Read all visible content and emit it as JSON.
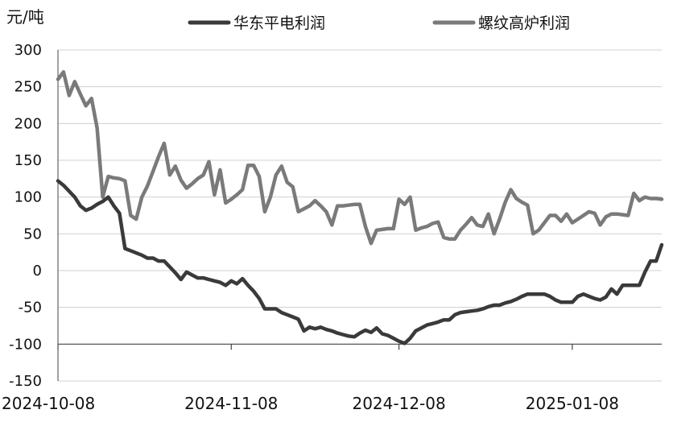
{
  "chart_data": {
    "type": "line",
    "title": "",
    "xlabel": "",
    "ylabel": "元/吨",
    "ylim": [
      -150,
      300
    ],
    "yticks": [
      -150,
      -100,
      -50,
      0,
      50,
      100,
      150,
      200,
      250,
      300
    ],
    "x_tick_labels": [
      "2024-10-08",
      "2024-11-08",
      "2024-12-08",
      "2025-01-08"
    ],
    "x_tick_dates": [
      "2024-10-08",
      "2024-11-08",
      "2024-12-08",
      "2025-01-08"
    ],
    "x_range": [
      "2024-10-08",
      "2025-01-24"
    ],
    "grid": "horizontal",
    "legend_position": "top",
    "series": [
      {
        "name": "华东平电利润",
        "color": "#3a3a3a",
        "points": [
          [
            "2024-10-08",
            122
          ],
          [
            "2024-10-09",
            116
          ],
          [
            "2024-10-10",
            108
          ],
          [
            "2024-10-11",
            100
          ],
          [
            "2024-10-12",
            88
          ],
          [
            "2024-10-13",
            82
          ],
          [
            "2024-10-14",
            85
          ],
          [
            "2024-10-15",
            90
          ],
          [
            "2024-10-16",
            94
          ],
          [
            "2024-10-17",
            100
          ],
          [
            "2024-10-18",
            88
          ],
          [
            "2024-10-19",
            78
          ],
          [
            "2024-10-20",
            30
          ],
          [
            "2024-10-21",
            27
          ],
          [
            "2024-10-22",
            24
          ],
          [
            "2024-10-23",
            21
          ],
          [
            "2024-10-24",
            17
          ],
          [
            "2024-10-25",
            17
          ],
          [
            "2024-10-26",
            13
          ],
          [
            "2024-10-27",
            13
          ],
          [
            "2024-10-28",
            5
          ],
          [
            "2024-10-29",
            -3
          ],
          [
            "2024-10-30",
            -12
          ],
          [
            "2024-10-31",
            -2
          ],
          [
            "2024-11-01",
            -6
          ],
          [
            "2024-11-02",
            -10
          ],
          [
            "2024-11-03",
            -10
          ],
          [
            "2024-11-04",
            -12
          ],
          [
            "2024-11-05",
            -14
          ],
          [
            "2024-11-06",
            -16
          ],
          [
            "2024-11-07",
            -20
          ],
          [
            "2024-11-08",
            -14
          ],
          [
            "2024-11-09",
            -18
          ],
          [
            "2024-11-10",
            -11
          ],
          [
            "2024-11-11",
            -20
          ],
          [
            "2024-11-12",
            -28
          ],
          [
            "2024-11-13",
            -38
          ],
          [
            "2024-11-14",
            -52
          ],
          [
            "2024-11-15",
            -52
          ],
          [
            "2024-11-16",
            -52
          ],
          [
            "2024-11-17",
            -57
          ],
          [
            "2024-11-18",
            -60
          ],
          [
            "2024-11-19",
            -63
          ],
          [
            "2024-11-20",
            -66
          ],
          [
            "2024-11-21",
            -82
          ],
          [
            "2024-11-22",
            -77
          ],
          [
            "2024-11-23",
            -79
          ],
          [
            "2024-11-24",
            -77
          ],
          [
            "2024-11-25",
            -80
          ],
          [
            "2024-11-26",
            -82
          ],
          [
            "2024-11-27",
            -85
          ],
          [
            "2024-11-28",
            -87
          ],
          [
            "2024-11-29",
            -89
          ],
          [
            "2024-11-30",
            -90
          ],
          [
            "2024-12-01",
            -85
          ],
          [
            "2024-12-02",
            -81
          ],
          [
            "2024-12-03",
            -84
          ],
          [
            "2024-12-04",
            -78
          ],
          [
            "2024-12-05",
            -86
          ],
          [
            "2024-12-06",
            -88
          ],
          [
            "2024-12-07",
            -92
          ],
          [
            "2024-12-08",
            -96
          ],
          [
            "2024-12-09",
            -99
          ],
          [
            "2024-12-10",
            -92
          ],
          [
            "2024-12-11",
            -82
          ],
          [
            "2024-12-12",
            -78
          ],
          [
            "2024-12-13",
            -74
          ],
          [
            "2024-12-14",
            -72
          ],
          [
            "2024-12-15",
            -70
          ],
          [
            "2024-12-16",
            -67
          ],
          [
            "2024-12-17",
            -67
          ],
          [
            "2024-12-18",
            -60
          ],
          [
            "2024-12-19",
            -57
          ],
          [
            "2024-12-20",
            -56
          ],
          [
            "2024-12-21",
            -55
          ],
          [
            "2024-12-22",
            -54
          ],
          [
            "2024-12-23",
            -52
          ],
          [
            "2024-12-24",
            -49
          ],
          [
            "2024-12-25",
            -47
          ],
          [
            "2024-12-26",
            -47
          ],
          [
            "2024-12-27",
            -44
          ],
          [
            "2024-12-28",
            -42
          ],
          [
            "2024-12-29",
            -39
          ],
          [
            "2024-12-30",
            -35
          ],
          [
            "2024-12-31",
            -32
          ],
          [
            "2025-01-01",
            -32
          ],
          [
            "2025-01-02",
            -32
          ],
          [
            "2025-01-03",
            -32
          ],
          [
            "2025-01-04",
            -35
          ],
          [
            "2025-01-05",
            -40
          ],
          [
            "2025-01-06",
            -43
          ],
          [
            "2025-01-07",
            -43
          ],
          [
            "2025-01-08",
            -43
          ],
          [
            "2025-01-09",
            -35
          ],
          [
            "2025-01-10",
            -32
          ],
          [
            "2025-01-11",
            -35
          ],
          [
            "2025-01-12",
            -38
          ],
          [
            "2025-01-13",
            -40
          ],
          [
            "2025-01-14",
            -36
          ],
          [
            "2025-01-15",
            -25
          ],
          [
            "2025-01-16",
            -32
          ],
          [
            "2025-01-17",
            -20
          ],
          [
            "2025-01-18",
            -20
          ],
          [
            "2025-01-19",
            -20
          ],
          [
            "2025-01-20",
            -20
          ],
          [
            "2025-01-21",
            -2
          ],
          [
            "2025-01-22",
            13
          ],
          [
            "2025-01-23",
            13
          ],
          [
            "2025-01-24",
            35
          ]
        ]
      },
      {
        "name": "螺纹高炉利润",
        "color": "#7a7a7a",
        "points": [
          [
            "2024-10-08",
            260
          ],
          [
            "2024-10-09",
            270
          ],
          [
            "2024-10-10",
            238
          ],
          [
            "2024-10-11",
            257
          ],
          [
            "2024-10-12",
            240
          ],
          [
            "2024-10-13",
            224
          ],
          [
            "2024-10-14",
            234
          ],
          [
            "2024-10-15",
            194
          ],
          [
            "2024-10-16",
            100
          ],
          [
            "2024-10-17",
            128
          ],
          [
            "2024-10-18",
            126
          ],
          [
            "2024-10-19",
            125
          ],
          [
            "2024-10-20",
            122
          ],
          [
            "2024-10-21",
            75
          ],
          [
            "2024-10-22",
            70
          ],
          [
            "2024-10-23",
            100
          ],
          [
            "2024-10-24",
            115
          ],
          [
            "2024-10-25",
            135
          ],
          [
            "2024-10-26",
            155
          ],
          [
            "2024-10-27",
            173
          ],
          [
            "2024-10-28",
            130
          ],
          [
            "2024-10-29",
            142
          ],
          [
            "2024-10-30",
            123
          ],
          [
            "2024-10-31",
            112
          ],
          [
            "2024-11-01",
            118
          ],
          [
            "2024-11-02",
            125
          ],
          [
            "2024-11-03",
            130
          ],
          [
            "2024-11-04",
            148
          ],
          [
            "2024-11-05",
            103
          ],
          [
            "2024-11-06",
            137
          ],
          [
            "2024-11-07",
            92
          ],
          [
            "2024-11-08",
            97
          ],
          [
            "2024-11-09",
            103
          ],
          [
            "2024-11-10",
            110
          ],
          [
            "2024-11-11",
            143
          ],
          [
            "2024-11-12",
            143
          ],
          [
            "2024-11-13",
            128
          ],
          [
            "2024-11-14",
            80
          ],
          [
            "2024-11-15",
            100
          ],
          [
            "2024-11-16",
            130
          ],
          [
            "2024-11-17",
            142
          ],
          [
            "2024-11-18",
            120
          ],
          [
            "2024-11-19",
            114
          ],
          [
            "2024-11-20",
            80
          ],
          [
            "2024-11-21",
            84
          ],
          [
            "2024-11-22",
            88
          ],
          [
            "2024-11-23",
            95
          ],
          [
            "2024-11-24",
            88
          ],
          [
            "2024-11-25",
            80
          ],
          [
            "2024-11-26",
            62
          ],
          [
            "2024-11-27",
            88
          ],
          [
            "2024-11-28",
            88
          ],
          [
            "2024-11-29",
            89
          ],
          [
            "2024-11-30",
            90
          ],
          [
            "2024-12-01",
            90
          ],
          [
            "2024-12-02",
            60
          ],
          [
            "2024-12-03",
            37
          ],
          [
            "2024-12-04",
            55
          ],
          [
            "2024-12-05",
            56
          ],
          [
            "2024-12-06",
            57
          ],
          [
            "2024-12-07",
            57
          ],
          [
            "2024-12-08",
            97
          ],
          [
            "2024-12-09",
            90
          ],
          [
            "2024-12-10",
            100
          ],
          [
            "2024-12-11",
            55
          ],
          [
            "2024-12-12",
            58
          ],
          [
            "2024-12-13",
            60
          ],
          [
            "2024-12-14",
            64
          ],
          [
            "2024-12-15",
            66
          ],
          [
            "2024-12-16",
            45
          ],
          [
            "2024-12-17",
            43
          ],
          [
            "2024-12-18",
            43
          ],
          [
            "2024-12-19",
            55
          ],
          [
            "2024-12-20",
            63
          ],
          [
            "2024-12-21",
            72
          ],
          [
            "2024-12-22",
            62
          ],
          [
            "2024-12-23",
            60
          ],
          [
            "2024-12-24",
            77
          ],
          [
            "2024-12-25",
            50
          ],
          [
            "2024-12-26",
            70
          ],
          [
            "2024-12-27",
            93
          ],
          [
            "2024-12-28",
            110
          ],
          [
            "2024-12-29",
            98
          ],
          [
            "2024-12-30",
            93
          ],
          [
            "2024-12-31",
            89
          ],
          [
            "2025-01-01",
            50
          ],
          [
            "2025-01-02",
            55
          ],
          [
            "2025-01-03",
            65
          ],
          [
            "2025-01-04",
            75
          ],
          [
            "2025-01-05",
            75
          ],
          [
            "2025-01-06",
            67
          ],
          [
            "2025-01-07",
            77
          ],
          [
            "2025-01-08",
            65
          ],
          [
            "2025-01-09",
            70
          ],
          [
            "2025-01-10",
            75
          ],
          [
            "2025-01-11",
            80
          ],
          [
            "2025-01-12",
            78
          ],
          [
            "2025-01-13",
            62
          ],
          [
            "2025-01-14",
            73
          ],
          [
            "2025-01-15",
            77
          ],
          [
            "2025-01-16",
            77
          ],
          [
            "2025-01-17",
            76
          ],
          [
            "2025-01-18",
            75
          ],
          [
            "2025-01-19",
            105
          ],
          [
            "2025-01-20",
            95
          ],
          [
            "2025-01-21",
            100
          ],
          [
            "2025-01-22",
            98
          ],
          [
            "2025-01-23",
            98
          ],
          [
            "2025-01-24",
            97
          ]
        ]
      }
    ]
  }
}
